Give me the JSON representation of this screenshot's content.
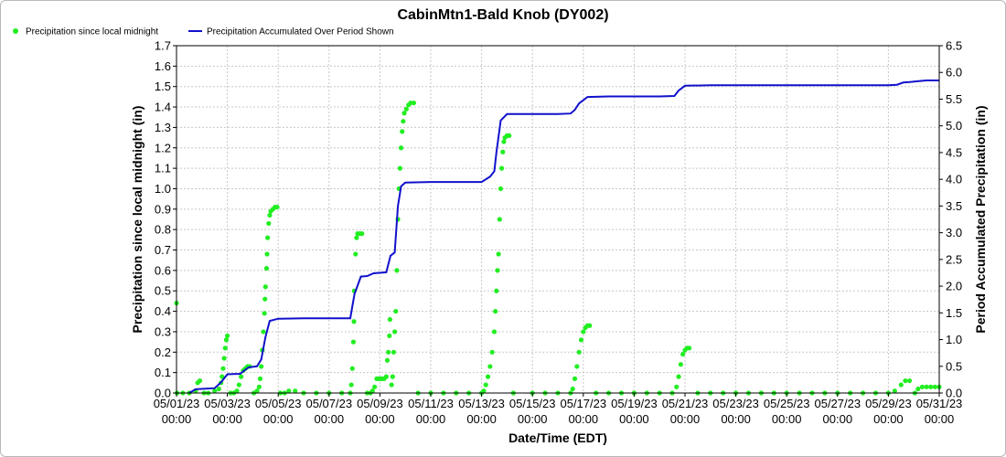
{
  "chart_data": {
    "type": "line",
    "title": "CabinMtn1-Bald Knob (DY002)",
    "xlabel": "Date/Time (EDT)",
    "ylabel": "Precipitation since local midnight (in)",
    "y2label": "Period Accumulated Precipitation (in)",
    "ylim": [
      0,
      1.7
    ],
    "y2lim": [
      0,
      6.5
    ],
    "xlim": [
      "05/01/23 00:00",
      "05/31/23 00:00"
    ],
    "yticks": [
      "0.0",
      "0.1",
      "0.2",
      "0.3",
      "0.4",
      "0.5",
      "0.6",
      "0.7",
      "0.8",
      "0.9",
      "1.0",
      "1.1",
      "1.2",
      "1.3",
      "1.4",
      "1.5",
      "1.6",
      "1.7"
    ],
    "y2ticks": [
      "0.0",
      "0.5",
      "1.0",
      "1.5",
      "2.0",
      "2.5",
      "3.0",
      "3.5",
      "4.0",
      "4.5",
      "5.0",
      "5.5",
      "6.0",
      "6.5"
    ],
    "xticks": [
      {
        "date": "05/01/23",
        "time": "00:00"
      },
      {
        "date": "05/03/23",
        "time": "00:00"
      },
      {
        "date": "05/05/23",
        "time": "00:00"
      },
      {
        "date": "05/07/23",
        "time": "00:00"
      },
      {
        "date": "05/09/23",
        "time": "00:00"
      },
      {
        "date": "05/11/23",
        "time": "00:00"
      },
      {
        "date": "05/13/23",
        "time": "00:00"
      },
      {
        "date": "05/15/23",
        "time": "00:00"
      },
      {
        "date": "05/17/23",
        "time": "00:00"
      },
      {
        "date": "05/19/23",
        "time": "00:00"
      },
      {
        "date": "05/21/23",
        "time": "00:00"
      },
      {
        "date": "05/23/23",
        "time": "00:00"
      },
      {
        "date": "05/25/23",
        "time": "00:00"
      },
      {
        "date": "05/27/23",
        "time": "00:00"
      },
      {
        "date": "05/29/23",
        "time": "00:00"
      },
      {
        "date": "05/31/23",
        "time": "00:00"
      }
    ],
    "grid": true,
    "legend_position": "top-left",
    "series": [
      {
        "name": "Precipitation since local midnight",
        "axis": "left",
        "style": "points",
        "color": "#22ee22",
        "points": [
          [
            "05/01/23 00:00",
            0.44
          ],
          [
            "05/01/23 00:30",
            0.0
          ],
          [
            "05/01/23 06:00",
            0.0
          ],
          [
            "05/01/23 12:00",
            0.0
          ],
          [
            "05/01/23 18:00",
            0.01
          ],
          [
            "05/01/23 20:00",
            0.05
          ],
          [
            "05/01/23 22:00",
            0.06
          ],
          [
            "05/02/23 02:00",
            0.0
          ],
          [
            "05/02/23 06:00",
            0.0
          ],
          [
            "05/02/23 12:00",
            0.01
          ],
          [
            "05/02/23 16:00",
            0.02
          ],
          [
            "05/02/23 18:00",
            0.05
          ],
          [
            "05/02/23 19:00",
            0.08
          ],
          [
            "05/02/23 20:00",
            0.12
          ],
          [
            "05/02/23 21:00",
            0.17
          ],
          [
            "05/02/23 22:00",
            0.22
          ],
          [
            "05/02/23 23:00",
            0.26
          ],
          [
            "05/03/23 00:00",
            0.28
          ],
          [
            "05/03/23 03:00",
            0.0
          ],
          [
            "05/03/23 06:00",
            0.0
          ],
          [
            "05/03/23 09:00",
            0.01
          ],
          [
            "05/03/23 11:00",
            0.04
          ],
          [
            "05/03/23 13:00",
            0.08
          ],
          [
            "05/03/23 15:00",
            0.11
          ],
          [
            "05/03/23 17:00",
            0.12
          ],
          [
            "05/03/23 19:00",
            0.13
          ],
          [
            "05/03/23 21:00",
            0.13
          ],
          [
            "05/04/23 01:00",
            0.0
          ],
          [
            "05/04/23 04:00",
            0.01
          ],
          [
            "05/04/23 06:00",
            0.03
          ],
          [
            "05/04/23 07:00",
            0.07
          ],
          [
            "05/04/23 08:00",
            0.13
          ],
          [
            "05/04/23 09:00",
            0.21
          ],
          [
            "05/04/23 10:00",
            0.3
          ],
          [
            "05/04/23 11:00",
            0.39
          ],
          [
            "05/04/23 11:30",
            0.46
          ],
          [
            "05/04/23 12:00",
            0.52
          ],
          [
            "05/04/23 13:00",
            0.61
          ],
          [
            "05/04/23 13:30",
            0.68
          ],
          [
            "05/04/23 14:00",
            0.76
          ],
          [
            "05/04/23 15:00",
            0.83
          ],
          [
            "05/04/23 16:00",
            0.87
          ],
          [
            "05/04/23 17:00",
            0.89
          ],
          [
            "05/04/23 19:00",
            0.9
          ],
          [
            "05/04/23 21:00",
            0.91
          ],
          [
            "05/04/23 23:00",
            0.91
          ],
          [
            "05/05/23 02:00",
            0.0
          ],
          [
            "05/05/23 06:00",
            0.0
          ],
          [
            "05/05/23 10:00",
            0.01
          ],
          [
            "05/05/23 16:00",
            0.01
          ],
          [
            "05/06/23 00:00",
            0.0
          ],
          [
            "05/06/23 12:00",
            0.0
          ],
          [
            "05/07/23 00:00",
            0.0
          ],
          [
            "05/07/23 12:00",
            0.0
          ],
          [
            "05/07/23 20:00",
            0.0
          ],
          [
            "05/07/23 21:00",
            0.04
          ],
          [
            "05/07/23 22:00",
            0.12
          ],
          [
            "05/07/23 23:00",
            0.25
          ],
          [
            "05/07/23 23:30",
            0.35
          ],
          [
            "05/07/23 23:45",
            0.5
          ],
          [
            "05/08/23 01:00",
            0.68
          ],
          [
            "05/08/23 02:00",
            0.76
          ],
          [
            "05/08/23 03:00",
            0.78
          ],
          [
            "05/08/23 05:00",
            0.78
          ],
          [
            "05/08/23 07:00",
            0.78
          ],
          [
            "05/08/23 12:00",
            0.0
          ],
          [
            "05/08/23 15:00",
            0.0
          ],
          [
            "05/08/23 17:00",
            0.01
          ],
          [
            "05/08/23 19:00",
            0.03
          ],
          [
            "05/08/23 21:00",
            0.07
          ],
          [
            "05/08/23 23:00",
            0.07
          ],
          [
            "05/09/23 00:00",
            0.07
          ],
          [
            "05/09/23 02:00",
            0.07
          ],
          [
            "05/09/23 04:00",
            0.07
          ],
          [
            "05/09/23 06:00",
            0.08
          ],
          [
            "05/09/23 07:00",
            0.16
          ],
          [
            "05/09/23 08:00",
            0.2
          ],
          [
            "05/09/23 09:00",
            0.28
          ],
          [
            "05/09/23 09:30",
            0.36
          ],
          [
            "05/09/23 11:00",
            0.04
          ],
          [
            "05/09/23 12:00",
            0.08
          ],
          [
            "05/09/23 13:00",
            0.2
          ],
          [
            "05/09/23 14:00",
            0.3
          ],
          [
            "05/09/23 15:00",
            0.4
          ],
          [
            "05/09/23 16:00",
            0.6
          ],
          [
            "05/09/23 17:00",
            0.85
          ],
          [
            "05/09/23 18:00",
            1.0
          ],
          [
            "05/09/23 19:00",
            1.1
          ],
          [
            "05/09/23 20:00",
            1.2
          ],
          [
            "05/09/23 21:00",
            1.28
          ],
          [
            "05/09/23 22:00",
            1.33
          ],
          [
            "05/09/23 23:00",
            1.37
          ],
          [
            "05/10/23 01:00",
            1.39
          ],
          [
            "05/10/23 03:00",
            1.41
          ],
          [
            "05/10/23 05:00",
            1.42
          ],
          [
            "05/10/23 08:00",
            1.42
          ],
          [
            "05/10/23 12:00",
            0.0
          ],
          [
            "05/11/23 00:00",
            0.0
          ],
          [
            "05/11/23 12:00",
            0.0
          ],
          [
            "05/12/23 00:00",
            0.0
          ],
          [
            "05/12/23 12:00",
            0.0
          ],
          [
            "05/13/23 00:00",
            0.0
          ],
          [
            "05/13/23 02:00",
            0.01
          ],
          [
            "05/13/23 04:00",
            0.04
          ],
          [
            "05/13/23 06:00",
            0.08
          ],
          [
            "05/13/23 08:00",
            0.13
          ],
          [
            "05/13/23 10:00",
            0.2
          ],
          [
            "05/13/23 12:00",
            0.3
          ],
          [
            "05/13/23 13:00",
            0.4
          ],
          [
            "05/13/23 14:00",
            0.5
          ],
          [
            "05/13/23 15:00",
            0.6
          ],
          [
            "05/13/23 16:00",
            0.68
          ],
          [
            "05/13/23 17:00",
            0.85
          ],
          [
            "05/13/23 18:00",
            1.0
          ],
          [
            "05/13/23 19:00",
            1.1
          ],
          [
            "05/13/23 20:00",
            1.18
          ],
          [
            "05/13/23 21:00",
            1.23
          ],
          [
            "05/13/23 22:00",
            1.25
          ],
          [
            "05/14/23 00:00",
            1.26
          ],
          [
            "05/14/23 02:00",
            1.26
          ],
          [
            "05/14/23 06:00",
            0.0
          ],
          [
            "05/15/23 00:00",
            0.0
          ],
          [
            "05/15/23 12:00",
            0.0
          ],
          [
            "05/16/23 00:00",
            0.0
          ],
          [
            "05/16/23 12:00",
            0.0
          ],
          [
            "05/16/23 14:00",
            0.02
          ],
          [
            "05/16/23 16:00",
            0.07
          ],
          [
            "05/16/23 18:00",
            0.13
          ],
          [
            "05/16/23 20:00",
            0.2
          ],
          [
            "05/16/23 22:00",
            0.26
          ],
          [
            "05/17/23 00:00",
            0.3
          ],
          [
            "05/17/23 02:00",
            0.32
          ],
          [
            "05/17/23 04:00",
            0.33
          ],
          [
            "05/17/23 06:00",
            0.33
          ],
          [
            "05/17/23 12:00",
            0.0
          ],
          [
            "05/18/23 00:00",
            0.0
          ],
          [
            "05/18/23 12:00",
            0.0
          ],
          [
            "05/19/23 00:00",
            0.0
          ],
          [
            "05/19/23 12:00",
            0.0
          ],
          [
            "05/20/23 00:00",
            0.0
          ],
          [
            "05/20/23 12:00",
            0.0
          ],
          [
            "05/20/23 16:00",
            0.03
          ],
          [
            "05/20/23 18:00",
            0.08
          ],
          [
            "05/20/23 20:00",
            0.14
          ],
          [
            "05/20/23 22:00",
            0.19
          ],
          [
            "05/21/23 00:00",
            0.21
          ],
          [
            "05/21/23 02:00",
            0.22
          ],
          [
            "05/21/23 04:00",
            0.22
          ],
          [
            "05/21/23 12:00",
            0.0
          ],
          [
            "05/22/23 00:00",
            0.0
          ],
          [
            "05/22/23 12:00",
            0.0
          ],
          [
            "05/23/23 00:00",
            0.0
          ],
          [
            "05/23/23 12:00",
            0.0
          ],
          [
            "05/24/23 00:00",
            0.0
          ],
          [
            "05/24/23 12:00",
            0.0
          ],
          [
            "05/25/23 00:00",
            0.0
          ],
          [
            "05/25/23 12:00",
            0.0
          ],
          [
            "05/26/23 00:00",
            0.0
          ],
          [
            "05/26/23 12:00",
            0.0
          ],
          [
            "05/27/23 00:00",
            0.0
          ],
          [
            "05/27/23 12:00",
            0.0
          ],
          [
            "05/28/23 00:00",
            0.0
          ],
          [
            "05/28/23 12:00",
            0.0
          ],
          [
            "05/29/23 00:00",
            0.0
          ],
          [
            "05/29/23 06:00",
            0.01
          ],
          [
            "05/29/23 12:00",
            0.04
          ],
          [
            "05/29/23 16:00",
            0.06
          ],
          [
            "05/29/23 20:00",
            0.06
          ],
          [
            "05/30/23 01:00",
            0.0
          ],
          [
            "05/30/23 04:00",
            0.02
          ],
          [
            "05/30/23 08:00",
            0.03
          ],
          [
            "05/30/23 12:00",
            0.03
          ],
          [
            "05/30/23 16:00",
            0.03
          ],
          [
            "05/30/23 20:00",
            0.03
          ],
          [
            "05/31/23 00:00",
            0.03
          ]
        ]
      },
      {
        "name": "Precipitation Accumulated Over Period Shown",
        "axis": "right",
        "style": "line",
        "color": "#1111cc",
        "points": [
          [
            "05/01/23 12:00",
            0.0
          ],
          [
            "05/01/23 18:00",
            0.07
          ],
          [
            "05/02/23 12:00",
            0.09
          ],
          [
            "05/02/23 18:00",
            0.2
          ],
          [
            "05/03/23 00:00",
            0.35
          ],
          [
            "05/03/23 12:00",
            0.36
          ],
          [
            "05/03/23 16:00",
            0.42
          ],
          [
            "05/03/23 20:00",
            0.48
          ],
          [
            "05/04/23 04:00",
            0.5
          ],
          [
            "05/04/23 08:00",
            0.63
          ],
          [
            "05/04/23 12:00",
            1.05
          ],
          [
            "05/04/23 16:00",
            1.35
          ],
          [
            "05/05/23 00:00",
            1.39
          ],
          [
            "05/06/23 00:00",
            1.4
          ],
          [
            "05/07/23 00:00",
            1.4
          ],
          [
            "05/07/23 20:00",
            1.4
          ],
          [
            "05/08/23 00:00",
            1.85
          ],
          [
            "05/08/23 06:00",
            2.18
          ],
          [
            "05/08/23 12:00",
            2.19
          ],
          [
            "05/08/23 18:00",
            2.24
          ],
          [
            "05/09/23 06:00",
            2.26
          ],
          [
            "05/09/23 10:00",
            2.57
          ],
          [
            "05/09/23 14:00",
            2.63
          ],
          [
            "05/09/23 17:00",
            3.5
          ],
          [
            "05/09/23 20:00",
            3.87
          ],
          [
            "05/10/23 00:00",
            3.94
          ],
          [
            "05/11/23 00:00",
            3.95
          ],
          [
            "05/12/23 00:00",
            3.95
          ],
          [
            "05/13/23 00:00",
            3.95
          ],
          [
            "05/13/23 08:00",
            4.05
          ],
          [
            "05/13/23 12:00",
            4.15
          ],
          [
            "05/13/23 14:00",
            4.5
          ],
          [
            "05/13/23 18:00",
            5.1
          ],
          [
            "05/14/23 00:00",
            5.22
          ],
          [
            "05/15/23 00:00",
            5.22
          ],
          [
            "05/16/23 00:00",
            5.22
          ],
          [
            "05/16/23 12:00",
            5.23
          ],
          [
            "05/16/23 16:00",
            5.3
          ],
          [
            "05/16/23 20:00",
            5.42
          ],
          [
            "05/17/23 04:00",
            5.54
          ],
          [
            "05/18/23 00:00",
            5.55
          ],
          [
            "05/19/23 00:00",
            5.55
          ],
          [
            "05/20/23 00:00",
            5.55
          ],
          [
            "05/20/23 14:00",
            5.56
          ],
          [
            "05/20/23 18:00",
            5.66
          ],
          [
            "05/21/23 00:00",
            5.75
          ],
          [
            "05/22/23 00:00",
            5.76
          ],
          [
            "05/25/23 00:00",
            5.76
          ],
          [
            "05/28/23 00:00",
            5.76
          ],
          [
            "05/29/23 00:00",
            5.76
          ],
          [
            "05/29/23 08:00",
            5.77
          ],
          [
            "05/29/23 14:00",
            5.81
          ],
          [
            "05/29/23 20:00",
            5.82
          ],
          [
            "05/30/23 06:00",
            5.84
          ],
          [
            "05/30/23 12:00",
            5.85
          ],
          [
            "05/31/23 00:00",
            5.85
          ]
        ]
      }
    ]
  }
}
